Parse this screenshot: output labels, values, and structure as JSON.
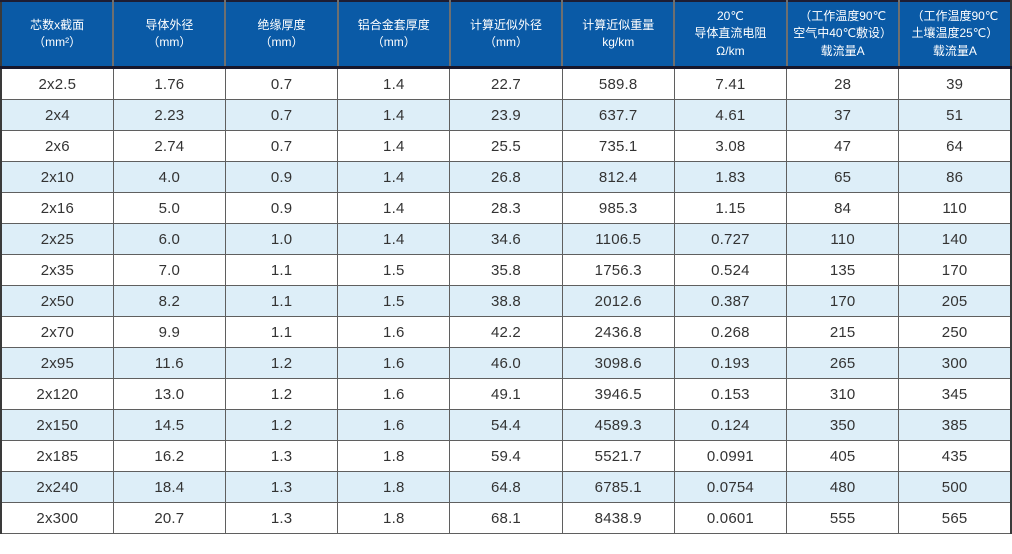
{
  "colors": {
    "header_bg": "#0a5aa6",
    "header_text": "#ffffff",
    "row_bg": "#ffffff",
    "row_alt_bg": "#ddeef8",
    "body_text": "#333333",
    "header_divider": "#6f6f6f",
    "header_bottom_border": "#17172c",
    "grid_line": "#5f5f5f"
  },
  "chart_data": {
    "type": "table",
    "legend_position": "none",
    "grid": true,
    "columns": [
      {
        "name": "cores-x-section",
        "label": "芯数x截面（mm²）",
        "lines": [
          "芯数x截面",
          "（mm²）"
        ]
      },
      {
        "name": "conductor-od",
        "label": "导体外径（mm）",
        "lines": [
          "导体外径",
          "（mm）"
        ]
      },
      {
        "name": "insulation-thickness",
        "label": "绝缘厚度（mm）",
        "lines": [
          "绝缘厚度",
          "（mm）"
        ]
      },
      {
        "name": "alloy-sheath-thickness",
        "label": "铝合金套厚度（mm）",
        "lines": [
          "铝合金套厚度",
          "（mm）"
        ]
      },
      {
        "name": "approx-od",
        "label": "计算近似外径（mm）",
        "lines": [
          "计算近似外径",
          "（mm）"
        ]
      },
      {
        "name": "approx-weight",
        "label": "计算近似重量 kg/km",
        "lines": [
          "计算近似重量",
          "kg/km"
        ]
      },
      {
        "name": "dc-resistance-20c",
        "label": "20℃导体直流电阻 Ω/km",
        "lines": [
          "20℃",
          "导体直流电阻",
          "Ω/km"
        ]
      },
      {
        "name": "ampacity-air",
        "label": "（工作温度90℃ 空气中40℃敷设）载流量A",
        "lines": [
          "（工作温度90℃",
          "空气中40℃敷设）",
          "载流量A"
        ]
      },
      {
        "name": "ampacity-soil",
        "label": "（工作温度90℃ 土壤温度25℃）载流量A",
        "lines": [
          "（工作温度90℃",
          "土壤温度25℃）",
          "载流量A"
        ]
      }
    ],
    "rows": [
      [
        "2x2.5",
        "1.76",
        "0.7",
        "1.4",
        "22.7",
        "589.8",
        "7.41",
        "28",
        "39"
      ],
      [
        "2x4",
        "2.23",
        "0.7",
        "1.4",
        "23.9",
        "637.7",
        "4.61",
        "37",
        "51"
      ],
      [
        "2x6",
        "2.74",
        "0.7",
        "1.4",
        "25.5",
        "735.1",
        "3.08",
        "47",
        "64"
      ],
      [
        "2x10",
        "4.0",
        "0.9",
        "1.4",
        "26.8",
        "812.4",
        "1.83",
        "65",
        "86"
      ],
      [
        "2x16",
        "5.0",
        "0.9",
        "1.4",
        "28.3",
        "985.3",
        "1.15",
        "84",
        "110"
      ],
      [
        "2x25",
        "6.0",
        "1.0",
        "1.4",
        "34.6",
        "1106.5",
        "0.727",
        "110",
        "140"
      ],
      [
        "2x35",
        "7.0",
        "1.1",
        "1.5",
        "35.8",
        "1756.3",
        "0.524",
        "135",
        "170"
      ],
      [
        "2x50",
        "8.2",
        "1.1",
        "1.5",
        "38.8",
        "2012.6",
        "0.387",
        "170",
        "205"
      ],
      [
        "2x70",
        "9.9",
        "1.1",
        "1.6",
        "42.2",
        "2436.8",
        "0.268",
        "215",
        "250"
      ],
      [
        "2x95",
        "11.6",
        "1.2",
        "1.6",
        "46.0",
        "3098.6",
        "0.193",
        "265",
        "300"
      ],
      [
        "2x120",
        "13.0",
        "1.2",
        "1.6",
        "49.1",
        "3946.5",
        "0.153",
        "310",
        "345"
      ],
      [
        "2x150",
        "14.5",
        "1.2",
        "1.6",
        "54.4",
        "4589.3",
        "0.124",
        "350",
        "385"
      ],
      [
        "2x185",
        "16.2",
        "1.3",
        "1.8",
        "59.4",
        "5521.7",
        "0.0991",
        "405",
        "435"
      ],
      [
        "2x240",
        "18.4",
        "1.3",
        "1.8",
        "64.8",
        "6785.1",
        "0.0754",
        "480",
        "500"
      ],
      [
        "2x300",
        "20.7",
        "1.3",
        "1.8",
        "68.1",
        "8438.9",
        "0.0601",
        "555",
        "565"
      ]
    ]
  }
}
